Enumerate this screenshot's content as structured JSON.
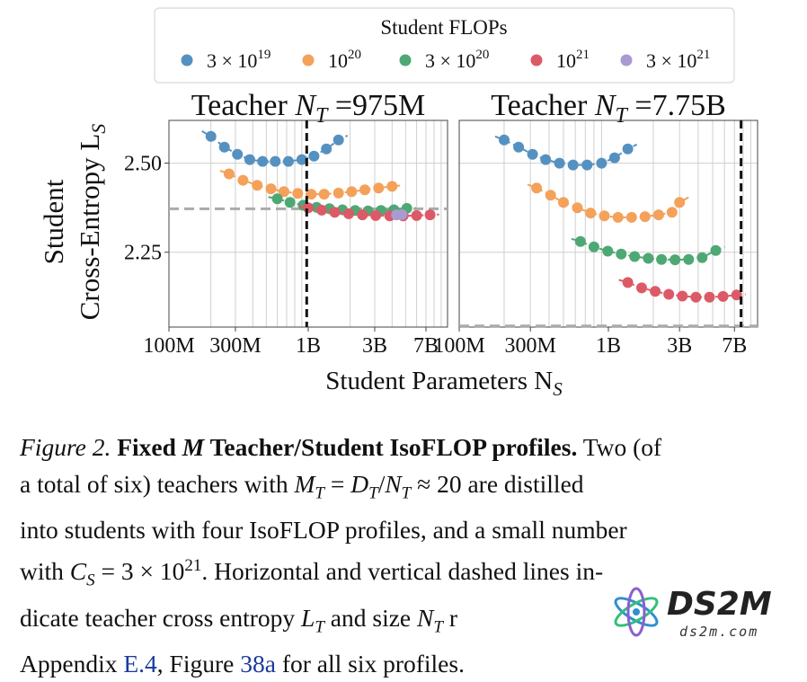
{
  "legend": {
    "title": "Student FLOPs",
    "entries": [
      {
        "label_base": "3 × 10",
        "label_exp": "19",
        "color": "#5591c0"
      },
      {
        "label_base": "10",
        "label_exp": "20",
        "color": "#f4a15a"
      },
      {
        "label_base": "3 × 10",
        "label_exp": "20",
        "color": "#4ea873"
      },
      {
        "label_base": "10",
        "label_exp": "21",
        "color": "#dc5a67"
      },
      {
        "label_base": "3 × 10",
        "label_exp": "21",
        "color": "#a99ad0"
      }
    ]
  },
  "axes": {
    "ylabel_line1": "Student",
    "ylabel_line2": "Cross-Entropy L",
    "ylabel_sub": "S",
    "xlabel": "Student Parameters N",
    "xlabel_sub": "S",
    "xticks": [
      "100M",
      "300M",
      "1B",
      "3B",
      "7B"
    ],
    "yticks": [
      "2.50",
      "2.25"
    ]
  },
  "chart_data": [
    {
      "type": "scatter",
      "title_prefix": "Teacher N",
      "title_sub": "T",
      "title_suffix": " =975M",
      "x_scale": "log",
      "xlim": [
        100000000,
        10000000000
      ],
      "ylim": [
        2.04,
        2.62
      ],
      "teacher_ce": 2.372,
      "teacher_size": 975000000,
      "series": [
        {
          "color": "#5591c0",
          "x": [
            200000000,
            250000000,
            310000000,
            380000000,
            470000000,
            580000000,
            720000000,
            900000000,
            1100000000,
            1350000000,
            1650000000
          ],
          "y": [
            2.575,
            2.545,
            2.525,
            2.51,
            2.505,
            2.505,
            2.505,
            2.51,
            2.52,
            2.54,
            2.565
          ]
        },
        {
          "color": "#f4a15a",
          "x": [
            270000000,
            340000000,
            430000000,
            540000000,
            670000000,
            840000000,
            1050000000,
            1300000000,
            1650000000,
            2050000000,
            2550000000,
            3200000000,
            4000000000
          ],
          "y": [
            2.47,
            2.452,
            2.438,
            2.428,
            2.42,
            2.415,
            2.413,
            2.413,
            2.416,
            2.42,
            2.425,
            2.43,
            2.435
          ]
        },
        {
          "color": "#4ea873",
          "x": [
            600000000,
            740000000,
            920000000,
            1150000000,
            1420000000,
            1760000000,
            2170000000,
            2690000000,
            3330000000,
            4120000000,
            5100000000
          ],
          "y": [
            2.4,
            2.39,
            2.382,
            2.376,
            2.372,
            2.369,
            2.367,
            2.366,
            2.367,
            2.369,
            2.373
          ]
        },
        {
          "color": "#dc5a67",
          "x": [
            1000000000,
            1250000000,
            1550000000,
            1950000000,
            2450000000,
            3050000000,
            3850000000,
            4800000000,
            6000000000,
            7500000000
          ],
          "y": [
            2.375,
            2.368,
            2.362,
            2.358,
            2.355,
            2.353,
            2.352,
            2.352,
            2.353,
            2.355
          ]
        },
        {
          "color": "#a99ad0",
          "x": [
            4300000000,
            4700000000
          ],
          "y": [
            2.355,
            2.356
          ]
        }
      ]
    },
    {
      "type": "scatter",
      "title_prefix": "Teacher N",
      "title_sub": "T",
      "title_suffix": " =7.75B",
      "x_scale": "log",
      "xlim": [
        100000000,
        10000000000
      ],
      "ylim": [
        2.04,
        2.62
      ],
      "teacher_ce": 2.043,
      "teacher_size": 7750000000,
      "series": [
        {
          "color": "#5591c0",
          "x": [
            200000000,
            250000000,
            310000000,
            380000000,
            470000000,
            580000000,
            720000000,
            900000000,
            1100000000,
            1350000000
          ],
          "y": [
            2.565,
            2.545,
            2.525,
            2.51,
            2.5,
            2.495,
            2.495,
            2.5,
            2.515,
            2.54
          ]
        },
        {
          "color": "#f4a15a",
          "x": [
            330000000,
            410000000,
            500000000,
            620000000,
            760000000,
            940000000,
            1160000000,
            1430000000,
            1760000000,
            2170000000,
            2670000000,
            3000000000
          ],
          "y": [
            2.43,
            2.41,
            2.39,
            2.375,
            2.36,
            2.352,
            2.348,
            2.348,
            2.35,
            2.355,
            2.362,
            2.39
          ]
        },
        {
          "color": "#4ea873",
          "x": [
            650000000,
            800000000,
            990000000,
            1220000000,
            1500000000,
            1850000000,
            2270000000,
            2800000000,
            3450000000,
            4250000000,
            5250000000
          ],
          "y": [
            2.28,
            2.265,
            2.253,
            2.245,
            2.238,
            2.233,
            2.23,
            2.229,
            2.23,
            2.235,
            2.255
          ]
        },
        {
          "color": "#dc5a67",
          "x": [
            1350000000,
            1670000000,
            2060000000,
            2540000000,
            3130000000,
            3860000000,
            4760000000,
            5870000000,
            7240000000
          ],
          "y": [
            2.165,
            2.15,
            2.14,
            2.132,
            2.127,
            2.124,
            2.124,
            2.126,
            2.13
          ]
        }
      ]
    }
  ],
  "caption": {
    "fig_label": "Figure 2.",
    "title_bold_a": "Fixed ",
    "title_math_m": "M",
    "title_bold_b": " Teacher/Student IsoFLOP profiles.",
    "line1_end": " Two (of",
    "line2_a": "a total of six) teachers with ",
    "line2_math": "M",
    "line2_sub": "T",
    "line2_b": " = ",
    "line2_math2": "D",
    "line2_sub2": "T",
    "line2_c": "/",
    "line2_math3": "N",
    "line2_sub3": "T",
    "line2_d": " ≈ 20 are distilled",
    "line3": "into students with four IsoFLOP profiles, and a small number",
    "line4_a": "with ",
    "line4_math": "C",
    "line4_sub": "S",
    "line4_b": " = 3 × 10",
    "line4_sup": "21",
    "line4_c": ".  Horizontal and vertical dashed lines in-",
    "line5_a": "dicate teacher cross entropy ",
    "line5_math": "L",
    "line5_sub": "T",
    "line5_b": " and size ",
    "line5_math2": "N",
    "line5_sub2": "T",
    "line5_c": " r",
    "line6_a": "Appendix ",
    "line6_link1": "E.4",
    "line6_b": ", Figure ",
    "line6_link2": "38a",
    "line6_c": " for all six profiles."
  },
  "watermark": {
    "logo_text": "DS2M",
    "url": "ds2m.com"
  }
}
